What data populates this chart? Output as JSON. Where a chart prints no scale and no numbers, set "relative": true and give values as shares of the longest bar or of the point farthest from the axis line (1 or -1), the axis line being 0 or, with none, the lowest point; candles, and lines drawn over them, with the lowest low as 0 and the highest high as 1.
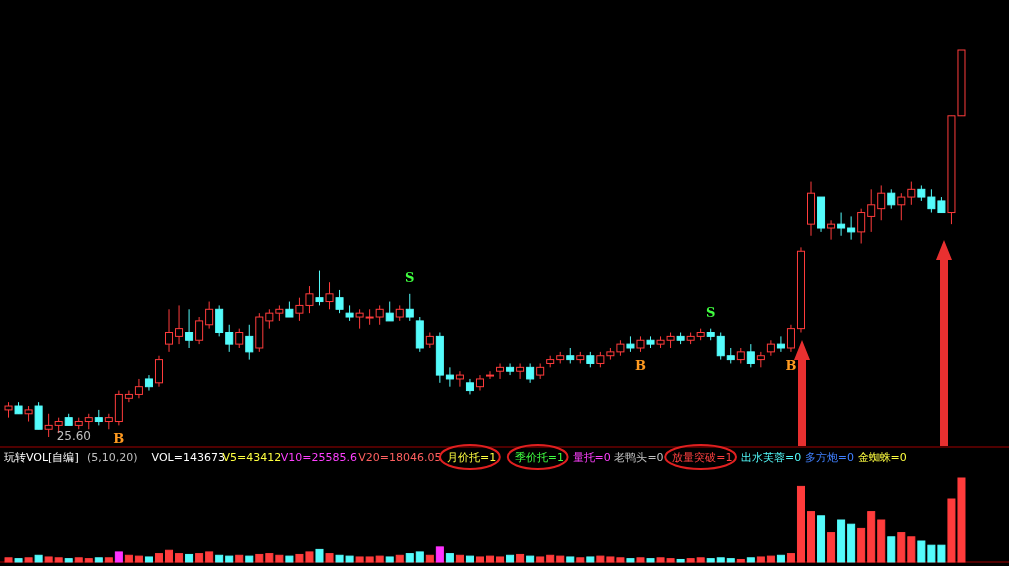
{
  "chart_data": [
    {
      "type": "candlestick",
      "relative": true,
      "categories": [
        null,
        null,
        null,
        null,
        null,
        null,
        null,
        null,
        null,
        null,
        null,
        null,
        null,
        null,
        null,
        null,
        null,
        null,
        null,
        null,
        null,
        null,
        null,
        null,
        null,
        null,
        null,
        null,
        null,
        null,
        null,
        null,
        null,
        null,
        null,
        null,
        null,
        null,
        null,
        null,
        null,
        null,
        null,
        null,
        null,
        null,
        null,
        null,
        null,
        null,
        null,
        null,
        null,
        null,
        null,
        null,
        null,
        null,
        null,
        null,
        null,
        null,
        null,
        null,
        null,
        null,
        null,
        null,
        null,
        null,
        null,
        null,
        null,
        null,
        null,
        null,
        null,
        null,
        null,
        null,
        null,
        null,
        null,
        null,
        null,
        null,
        null,
        null,
        null,
        null,
        null,
        null,
        null,
        null,
        null,
        null
      ],
      "ohlc": [
        [
          0.07,
          0.09,
          0.05,
          0.08
        ],
        [
          0.08,
          0.09,
          0.06,
          0.06
        ],
        [
          0.06,
          0.08,
          0.04,
          0.07
        ],
        [
          0.08,
          0.09,
          0.02,
          0.02
        ],
        [
          0.02,
          0.06,
          0.0,
          0.03
        ],
        [
          0.03,
          0.05,
          0.01,
          0.04
        ],
        [
          0.05,
          0.06,
          0.03,
          0.03
        ],
        [
          0.03,
          0.05,
          0.02,
          0.04
        ],
        [
          0.04,
          0.06,
          0.02,
          0.05
        ],
        [
          0.05,
          0.07,
          0.03,
          0.04
        ],
        [
          0.04,
          0.06,
          0.02,
          0.05
        ],
        [
          0.04,
          0.12,
          0.03,
          0.11
        ],
        [
          0.1,
          0.12,
          0.09,
          0.11
        ],
        [
          0.11,
          0.15,
          0.1,
          0.13
        ],
        [
          0.15,
          0.16,
          0.12,
          0.13
        ],
        [
          0.14,
          0.21,
          0.13,
          0.2
        ],
        [
          0.24,
          0.33,
          0.22,
          0.27
        ],
        [
          0.26,
          0.34,
          0.24,
          0.28
        ],
        [
          0.27,
          0.33,
          0.23,
          0.25
        ],
        [
          0.25,
          0.31,
          0.24,
          0.3
        ],
        [
          0.29,
          0.35,
          0.28,
          0.33
        ],
        [
          0.33,
          0.34,
          0.26,
          0.27
        ],
        [
          0.27,
          0.29,
          0.22,
          0.24
        ],
        [
          0.24,
          0.28,
          0.23,
          0.27
        ],
        [
          0.26,
          0.29,
          0.2,
          0.22
        ],
        [
          0.23,
          0.32,
          0.22,
          0.31
        ],
        [
          0.3,
          0.33,
          0.28,
          0.32
        ],
        [
          0.32,
          0.34,
          0.3,
          0.33
        ],
        [
          0.33,
          0.35,
          0.31,
          0.31
        ],
        [
          0.32,
          0.36,
          0.3,
          0.34
        ],
        [
          0.34,
          0.39,
          0.32,
          0.37
        ],
        [
          0.36,
          0.43,
          0.34,
          0.35
        ],
        [
          0.35,
          0.4,
          0.33,
          0.37
        ],
        [
          0.36,
          0.38,
          0.32,
          0.33
        ],
        [
          0.32,
          0.34,
          0.3,
          0.31
        ],
        [
          0.31,
          0.33,
          0.28,
          0.32
        ],
        [
          0.31,
          0.33,
          0.29,
          0.31
        ],
        [
          0.31,
          0.34,
          0.29,
          0.33
        ],
        [
          0.32,
          0.35,
          0.3,
          0.3
        ],
        [
          0.31,
          0.34,
          0.3,
          0.33
        ],
        [
          0.33,
          0.37,
          0.3,
          0.31
        ],
        [
          0.3,
          0.31,
          0.22,
          0.23
        ],
        [
          0.24,
          0.27,
          0.23,
          0.26
        ],
        [
          0.26,
          0.27,
          0.14,
          0.16
        ],
        [
          0.16,
          0.18,
          0.13,
          0.15
        ],
        [
          0.15,
          0.17,
          0.13,
          0.16
        ],
        [
          0.14,
          0.15,
          0.11,
          0.12
        ],
        [
          0.13,
          0.16,
          0.12,
          0.15
        ],
        [
          0.16,
          0.17,
          0.15,
          0.16
        ],
        [
          0.17,
          0.19,
          0.15,
          0.18
        ],
        [
          0.18,
          0.19,
          0.16,
          0.17
        ],
        [
          0.17,
          0.19,
          0.15,
          0.18
        ],
        [
          0.18,
          0.19,
          0.14,
          0.15
        ],
        [
          0.16,
          0.19,
          0.15,
          0.18
        ],
        [
          0.19,
          0.21,
          0.18,
          0.2
        ],
        [
          0.2,
          0.22,
          0.19,
          0.21
        ],
        [
          0.21,
          0.23,
          0.19,
          0.2
        ],
        [
          0.2,
          0.22,
          0.19,
          0.21
        ],
        [
          0.21,
          0.22,
          0.18,
          0.19
        ],
        [
          0.19,
          0.22,
          0.18,
          0.21
        ],
        [
          0.21,
          0.23,
          0.2,
          0.22
        ],
        [
          0.22,
          0.25,
          0.21,
          0.24
        ],
        [
          0.24,
          0.26,
          0.22,
          0.23
        ],
        [
          0.23,
          0.26,
          0.22,
          0.25
        ],
        [
          0.25,
          0.26,
          0.23,
          0.24
        ],
        [
          0.24,
          0.26,
          0.23,
          0.25
        ],
        [
          0.25,
          0.27,
          0.23,
          0.26
        ],
        [
          0.26,
          0.27,
          0.24,
          0.25
        ],
        [
          0.25,
          0.27,
          0.24,
          0.26
        ],
        [
          0.26,
          0.28,
          0.25,
          0.27
        ],
        [
          0.27,
          0.28,
          0.25,
          0.26
        ],
        [
          0.26,
          0.27,
          0.2,
          0.21
        ],
        [
          0.21,
          0.23,
          0.19,
          0.2
        ],
        [
          0.2,
          0.23,
          0.19,
          0.22
        ],
        [
          0.22,
          0.24,
          0.18,
          0.19
        ],
        [
          0.2,
          0.22,
          0.18,
          0.21
        ],
        [
          0.22,
          0.25,
          0.21,
          0.24
        ],
        [
          0.24,
          0.26,
          0.22,
          0.23
        ],
        [
          0.23,
          0.29,
          0.22,
          0.28
        ],
        [
          0.28,
          0.49,
          0.27,
          0.48
        ],
        [
          0.55,
          0.66,
          0.52,
          0.63
        ],
        [
          0.62,
          0.62,
          0.53,
          0.54
        ],
        [
          0.54,
          0.56,
          0.51,
          0.55
        ],
        [
          0.55,
          0.58,
          0.52,
          0.54
        ],
        [
          0.54,
          0.57,
          0.51,
          0.53
        ],
        [
          0.53,
          0.59,
          0.5,
          0.58
        ],
        [
          0.57,
          0.64,
          0.53,
          0.6
        ],
        [
          0.59,
          0.65,
          0.56,
          0.63
        ],
        [
          0.63,
          0.64,
          0.59,
          0.6
        ],
        [
          0.6,
          0.63,
          0.56,
          0.62
        ],
        [
          0.62,
          0.66,
          0.6,
          0.64
        ],
        [
          0.64,
          0.65,
          0.61,
          0.62
        ],
        [
          0.62,
          0.64,
          0.58,
          0.59
        ],
        [
          0.61,
          0.62,
          0.58,
          0.58
        ],
        [
          0.58,
          0.83,
          0.55,
          0.83
        ],
        [
          0.83,
          1.0,
          0.83,
          1.0
        ]
      ],
      "annotations": [
        "25.60",
        "B",
        "S",
        "B",
        "S",
        "B"
      ]
    },
    {
      "type": "bar",
      "relative": true,
      "title": "玩转VOL[自编]",
      "subtitle": "(5,10,20)",
      "categories": [
        null,
        null,
        null,
        null,
        null,
        null,
        null,
        null,
        null,
        null,
        null,
        null,
        null,
        null,
        null,
        null,
        null,
        null,
        null,
        null,
        null,
        null,
        null,
        null,
        null,
        null,
        null,
        null,
        null,
        null,
        null,
        null,
        null,
        null,
        null,
        null,
        null,
        null,
        null,
        null,
        null,
        null,
        null,
        null,
        null,
        null,
        null,
        null,
        null,
        null,
        null,
        null,
        null,
        null,
        null,
        null,
        null,
        null,
        null,
        null,
        null,
        null,
        null,
        null,
        null,
        null,
        null,
        null,
        null,
        null,
        null,
        null,
        null,
        null,
        null,
        null,
        null,
        null,
        null,
        null,
        null,
        null,
        null,
        null,
        null,
        null,
        null,
        null,
        null,
        null,
        null,
        null,
        null,
        null,
        null,
        null
      ],
      "values": [
        0.05,
        0.04,
        0.05,
        0.08,
        0.06,
        0.05,
        0.04,
        0.05,
        0.04,
        0.05,
        0.05,
        0.12,
        0.08,
        0.07,
        0.06,
        0.1,
        0.14,
        0.1,
        0.09,
        0.1,
        0.12,
        0.08,
        0.07,
        0.08,
        0.07,
        0.09,
        0.1,
        0.08,
        0.07,
        0.09,
        0.12,
        0.15,
        0.1,
        0.08,
        0.07,
        0.06,
        0.06,
        0.07,
        0.06,
        0.08,
        0.1,
        0.12,
        0.08,
        0.18,
        0.1,
        0.08,
        0.07,
        0.06,
        0.07,
        0.06,
        0.08,
        0.09,
        0.07,
        0.06,
        0.08,
        0.07,
        0.06,
        0.05,
        0.06,
        0.07,
        0.06,
        0.05,
        0.04,
        0.05,
        0.04,
        0.05,
        0.04,
        0.03,
        0.04,
        0.05,
        0.04,
        0.05,
        0.04,
        0.03,
        0.05,
        0.06,
        0.07,
        0.08,
        0.1,
        0.9,
        0.6,
        0.55,
        0.35,
        0.5,
        0.45,
        0.4,
        0.6,
        0.5,
        0.3,
        0.35,
        0.3,
        0.25,
        0.2,
        0.2,
        0.75,
        1.0
      ],
      "colors": [
        "#ff3c3c",
        "#54fcfc",
        "#ff3c3c",
        "#54fcfc",
        "#ff3c3c",
        "#ff3c3c",
        "#54fcfc",
        "#ff3c3c",
        "#ff3c3c",
        "#54fcfc",
        "#ff3c3c",
        "#ff33ff",
        "#ff3c3c",
        "#ff3c3c",
        "#54fcfc",
        "#ff3c3c",
        "#ff3c3c",
        "#ff3c3c",
        "#54fcfc",
        "#ff3c3c",
        "#ff3c3c",
        "#54fcfc",
        "#54fcfc",
        "#ff3c3c",
        "#54fcfc",
        "#ff3c3c",
        "#ff3c3c",
        "#ff3c3c",
        "#54fcfc",
        "#ff3c3c",
        "#ff3c3c",
        "#54fcfc",
        "#ff3c3c",
        "#54fcfc",
        "#54fcfc",
        "#ff3c3c",
        "#ff3c3c",
        "#ff3c3c",
        "#54fcfc",
        "#ff3c3c",
        "#54fcfc",
        "#54fcfc",
        "#ff3c3c",
        "#ff33ff",
        "#54fcfc",
        "#ff3c3c",
        "#54fcfc",
        "#ff3c3c",
        "#ff3c3c",
        "#ff3c3c",
        "#54fcfc",
        "#ff3c3c",
        "#54fcfc",
        "#ff3c3c",
        "#ff3c3c",
        "#ff3c3c",
        "#54fcfc",
        "#ff3c3c",
        "#54fcfc",
        "#ff3c3c",
        "#ff3c3c",
        "#ff3c3c",
        "#54fcfc",
        "#ff3c3c",
        "#54fcfc",
        "#ff3c3c",
        "#ff3c3c",
        "#54fcfc",
        "#ff3c3c",
        "#ff3c3c",
        "#54fcfc",
        "#54fcfc",
        "#54fcfc",
        "#ff3c3c",
        "#54fcfc",
        "#ff3c3c",
        "#ff3c3c",
        "#54fcfc",
        "#ff3c3c",
        "#ff3c3c",
        "#ff3c3c",
        "#54fcfc",
        "#ff3c3c",
        "#54fcfc",
        "#54fcfc",
        "#ff3c3c",
        "#ff3c3c",
        "#ff3c3c",
        "#54fcfc",
        "#ff3c3c",
        "#ff3c3c",
        "#54fcfc",
        "#54fcfc",
        "#54fcfc",
        "#ff3c3c",
        "#ff3c3c"
      ],
      "annotations": [
        "VOL=143673",
        "V5=43412",
        "V10=25585.6",
        "V20=18046.05",
        "月价托=1",
        "季价托=1",
        "量托=0",
        "老鸭头=0",
        "放量突破=1",
        "出水芙蓉=0",
        "多方炮=0",
        "金蜘蛛=0"
      ]
    }
  ]
}
